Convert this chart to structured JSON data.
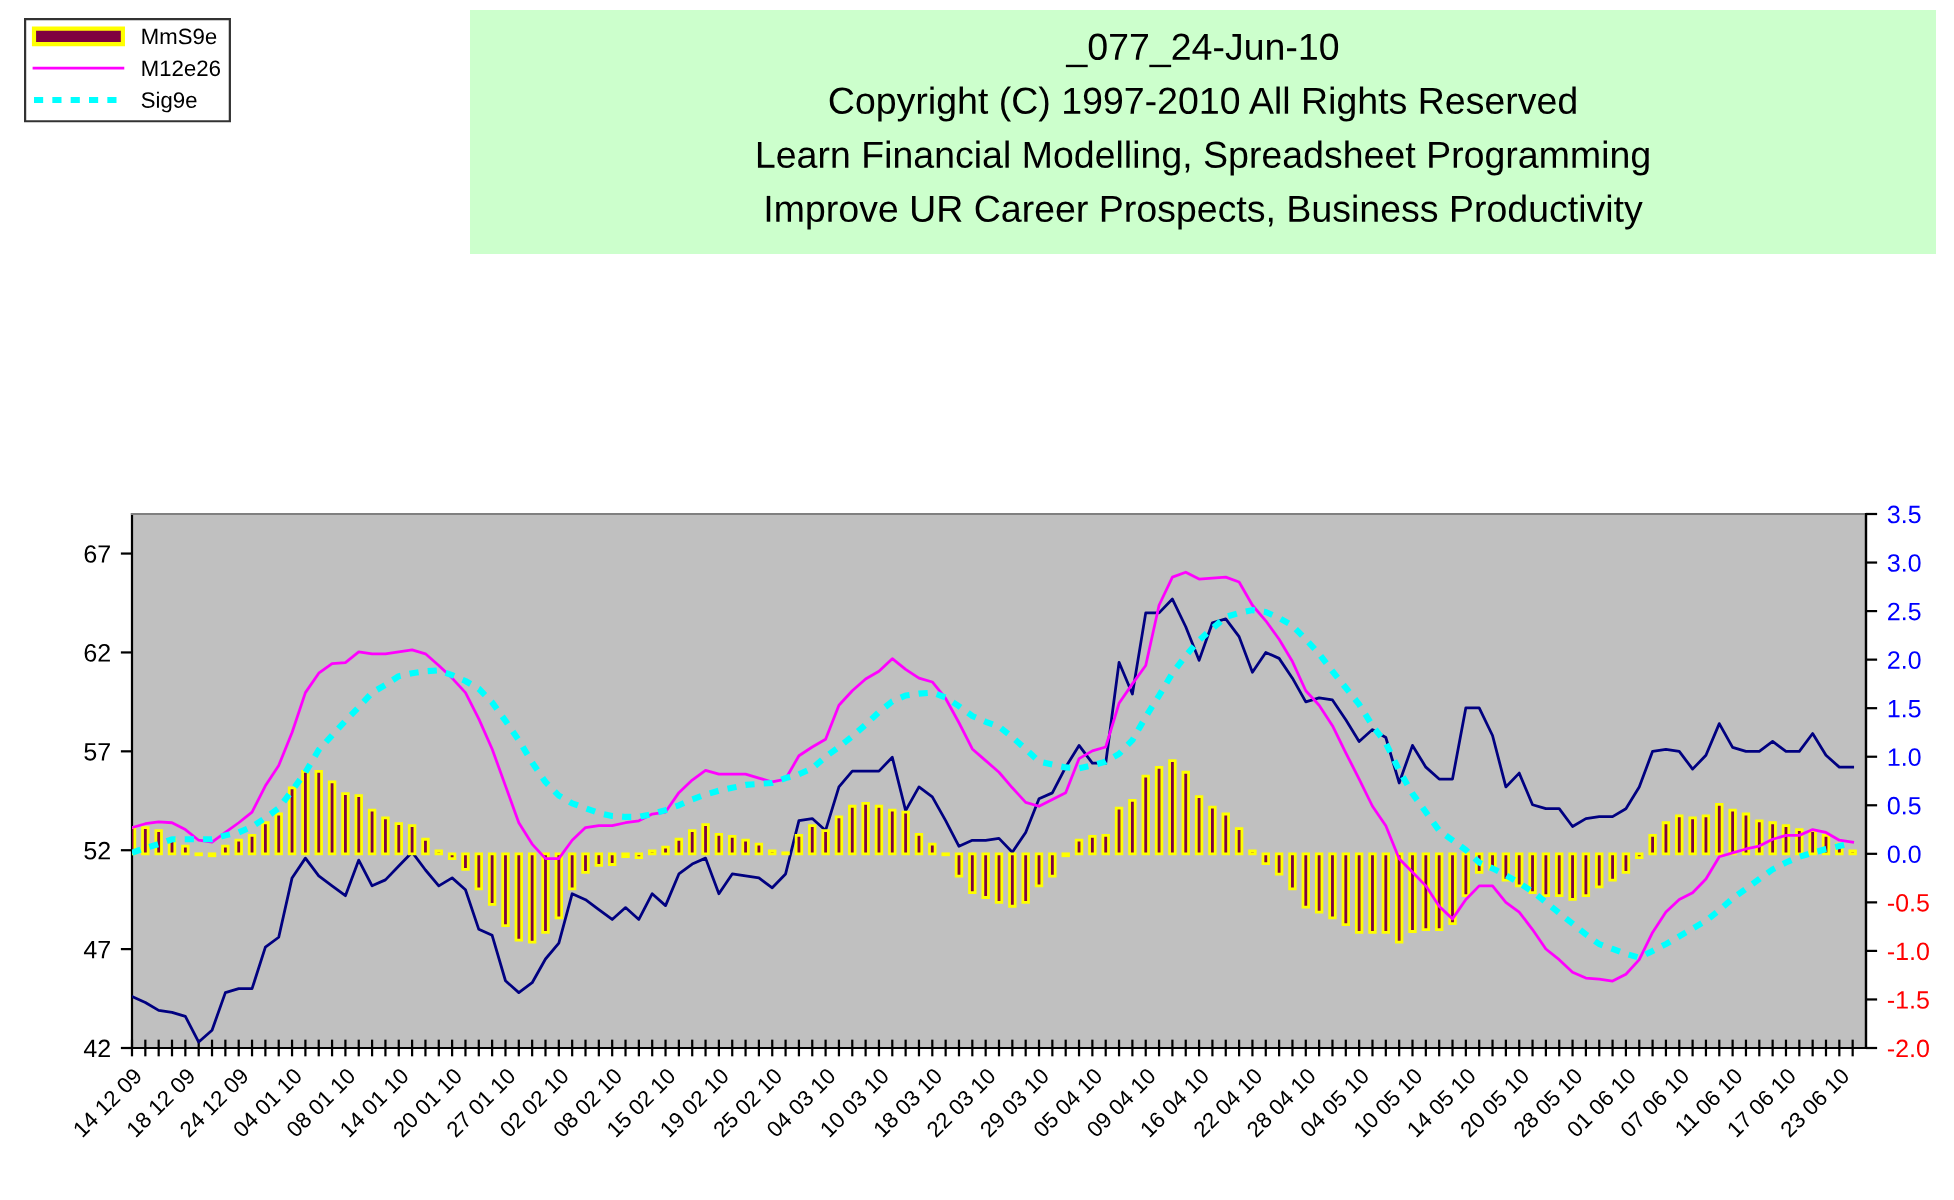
{
  "chart_data": {
    "type": "line",
    "title": "_077_24-Jun-10",
    "annotations": [
      "Copyright (C) 1997-2010 All Rights Reserved",
      "Learn Financial Modelling, Spreadsheet Programming",
      "Improve UR Career Prospects, Business Productivity"
    ],
    "categories": [
      "14 12 09",
      null,
      null,
      null,
      "18 12 09",
      null,
      null,
      null,
      "24 12 09",
      null,
      null,
      null,
      "04 01 10",
      null,
      null,
      null,
      "08 01 10",
      null,
      null,
      null,
      "14 01 10",
      null,
      null,
      null,
      "20 01 10",
      null,
      null,
      null,
      "27 01 10",
      null,
      null,
      null,
      "02 02 10",
      null,
      null,
      null,
      "08 02 10",
      null,
      null,
      null,
      "15 02 10",
      null,
      null,
      null,
      "19 02 10",
      null,
      null,
      null,
      "25 02 10",
      null,
      null,
      null,
      "04 03 10",
      null,
      null,
      null,
      "10 03 10",
      null,
      null,
      null,
      "18 03 10",
      null,
      null,
      null,
      "22 03 10",
      null,
      null,
      null,
      "29 03 10",
      null,
      null,
      null,
      "05 04 10",
      null,
      null,
      null,
      "09 04 10",
      null,
      null,
      null,
      "16 04 10",
      null,
      null,
      null,
      "22 04 10",
      null,
      null,
      null,
      "28 04 10",
      null,
      null,
      null,
      "04 05 10",
      null,
      null,
      null,
      "10 05 10",
      null,
      null,
      null,
      "14 05 10",
      null,
      null,
      null,
      "20 05 10",
      null,
      null,
      null,
      "28 05 10",
      null,
      null,
      null,
      "01 06 10",
      null,
      null,
      null,
      "07 06 10",
      null,
      null,
      null,
      "11 06 10",
      null,
      null,
      null,
      "17 06 10",
      null,
      null,
      null,
      "23 06 10",
      null
    ],
    "series": [
      {
        "name": "MmS9e",
        "type": "bar",
        "axis": "y2",
        "color": "#800040",
        "values": [
          0.27,
          0.27,
          0.24,
          0.15,
          0.08,
          -0.01,
          -0.02,
          0.08,
          0.14,
          0.19,
          0.32,
          0.41,
          0.68,
          0.85,
          0.85,
          0.74,
          0.62,
          0.6,
          0.45,
          0.37,
          0.31,
          0.29,
          0.15,
          0.03,
          -0.05,
          -0.16,
          -0.36,
          -0.52,
          -0.74,
          -0.89,
          -0.91,
          -0.81,
          -0.66,
          -0.36,
          -0.19,
          -0.12,
          -0.11,
          -0.03,
          -0.04,
          0.03,
          0.07,
          0.15,
          0.24,
          0.3,
          0.2,
          0.18,
          0.14,
          0.1,
          0.03,
          0.01,
          0.19,
          0.29,
          0.24,
          0.38,
          0.49,
          0.52,
          0.49,
          0.45,
          0.43,
          0.2,
          0.1,
          -0.01,
          -0.23,
          -0.4,
          -0.45,
          -0.5,
          -0.54,
          -0.5,
          -0.33,
          -0.23,
          -0.02,
          0.14,
          0.18,
          0.19,
          0.47,
          0.55,
          0.8,
          0.89,
          0.96,
          0.84,
          0.59,
          0.48,
          0.41,
          0.26,
          0.03,
          -0.1,
          -0.21,
          -0.36,
          -0.55,
          -0.6,
          -0.66,
          -0.73,
          -0.81,
          -0.81,
          -0.81,
          -0.91,
          -0.8,
          -0.78,
          -0.78,
          -0.72,
          -0.43,
          -0.19,
          -0.16,
          -0.27,
          -0.33,
          -0.4,
          -0.43,
          -0.43,
          -0.47,
          -0.43,
          -0.34,
          -0.27,
          -0.19,
          -0.04,
          0.19,
          0.32,
          0.39,
          0.37,
          0.39,
          0.51,
          0.45,
          0.41,
          0.34,
          0.32,
          0.29,
          0.25,
          0.24,
          0.19,
          0.1,
          0.03
        ]
      },
      {
        "axis": "y",
        "color": "#000080",
        "values": [
          44.6,
          44.3,
          43.9,
          43.8,
          43.6,
          42.3,
          42.9,
          44.8,
          45.0,
          45.0,
          47.1,
          47.6,
          50.6,
          51.6,
          50.7,
          50.2,
          49.7,
          51.5,
          50.2,
          50.5,
          51.2,
          51.9,
          51.0,
          50.2,
          50.6,
          50.0,
          48.0,
          47.7,
          45.4,
          44.8,
          45.3,
          46.5,
          47.3,
          49.8,
          49.5,
          49.0,
          48.5,
          49.1,
          48.5,
          49.8,
          49.2,
          50.8,
          51.3,
          51.6,
          49.8,
          50.8,
          50.7,
          50.6,
          50.1,
          50.8,
          53.5,
          53.6,
          53.0,
          55.2,
          56.0,
          56.0,
          56.0,
          56.7,
          54.0,
          55.2,
          54.7,
          53.5,
          52.2,
          52.5,
          52.5,
          52.6,
          51.9,
          52.9,
          54.6,
          54.9,
          56.2,
          57.3,
          56.4,
          56.4,
          61.5,
          59.9,
          64.0,
          64.0,
          64.7,
          63.3,
          61.6,
          63.5,
          63.7,
          62.8,
          61.0,
          62.0,
          61.7,
          60.7,
          59.5,
          59.7,
          59.6,
          58.6,
          57.5,
          58.1,
          57.7,
          55.4,
          57.3,
          56.2,
          55.6,
          55.6,
          59.2,
          59.2,
          57.8,
          55.2,
          55.9,
          54.3,
          54.1,
          54.1,
          53.2,
          53.6,
          53.7,
          53.7,
          54.1,
          55.2,
          57.0,
          57.1,
          57.0,
          56.1,
          56.8,
          58.4,
          57.2,
          57.0,
          57.0,
          57.5,
          57.0,
          57.0,
          57.9,
          56.8,
          56.2,
          56.2
        ]
      },
      {
        "name": "M12e26",
        "type": "line",
        "axis": "y2",
        "color": "#ff00ff",
        "values": [
          0.27,
          0.31,
          0.33,
          0.32,
          0.25,
          0.14,
          0.12,
          0.22,
          0.32,
          0.43,
          0.7,
          0.91,
          1.25,
          1.66,
          1.86,
          1.96,
          1.97,
          2.08,
          2.06,
          2.06,
          2.08,
          2.1,
          2.06,
          1.94,
          1.81,
          1.66,
          1.39,
          1.08,
          0.7,
          0.32,
          0.1,
          -0.05,
          -0.05,
          0.14,
          0.27,
          0.29,
          0.29,
          0.32,
          0.34,
          0.41,
          0.43,
          0.63,
          0.76,
          0.86,
          0.82,
          0.82,
          0.82,
          0.78,
          0.74,
          0.77,
          1.01,
          1.1,
          1.18,
          1.53,
          1.68,
          1.8,
          1.88,
          2.01,
          1.9,
          1.81,
          1.77,
          1.6,
          1.35,
          1.08,
          0.96,
          0.84,
          0.68,
          0.53,
          0.49,
          0.56,
          0.63,
          0.98,
          1.06,
          1.1,
          1.55,
          1.75,
          1.94,
          2.56,
          2.85,
          2.9,
          2.83,
          2.84,
          2.85,
          2.8,
          2.56,
          2.4,
          2.21,
          1.98,
          1.68,
          1.53,
          1.32,
          1.04,
          0.77,
          0.49,
          0.29,
          -0.05,
          -0.19,
          -0.33,
          -0.54,
          -0.67,
          -0.47,
          -0.33,
          -0.33,
          -0.5,
          -0.6,
          -0.78,
          -0.98,
          -1.09,
          -1.22,
          -1.28,
          -1.29,
          -1.31,
          -1.24,
          -1.09,
          -0.81,
          -0.6,
          -0.47,
          -0.4,
          -0.26,
          -0.03,
          0.01,
          0.05,
          0.08,
          0.15,
          0.19,
          0.19,
          0.25,
          0.22,
          0.14,
          0.12
        ]
      },
      {
        "name": "Sig9e",
        "type": "line",
        "axis": "y2",
        "line_style": "dashed",
        "color": "#00ffff",
        "values": [
          0.01,
          0.06,
          0.1,
          0.15,
          0.15,
          0.15,
          0.15,
          0.19,
          0.22,
          0.28,
          0.37,
          0.47,
          0.65,
          0.84,
          1.07,
          1.22,
          1.37,
          1.51,
          1.66,
          1.74,
          1.83,
          1.86,
          1.88,
          1.89,
          1.84,
          1.78,
          1.7,
          1.56,
          1.37,
          1.17,
          0.94,
          0.74,
          0.6,
          0.52,
          0.47,
          0.42,
          0.39,
          0.38,
          0.38,
          0.41,
          0.45,
          0.5,
          0.56,
          0.61,
          0.65,
          0.68,
          0.71,
          0.72,
          0.73,
          0.78,
          0.82,
          0.88,
          1.0,
          1.1,
          1.21,
          1.33,
          1.46,
          1.57,
          1.63,
          1.65,
          1.66,
          1.61,
          1.52,
          1.42,
          1.36,
          1.31,
          1.2,
          1.08,
          0.95,
          0.92,
          0.89,
          0.88,
          0.91,
          0.95,
          1.03,
          1.17,
          1.41,
          1.63,
          1.86,
          2.04,
          2.2,
          2.32,
          2.44,
          2.48,
          2.51,
          2.49,
          2.43,
          2.35,
          2.21,
          2.06,
          1.88,
          1.71,
          1.54,
          1.32,
          1.14,
          0.86,
          0.62,
          0.43,
          0.24,
          0.14,
          0.04,
          -0.09,
          -0.15,
          -0.22,
          -0.3,
          -0.39,
          -0.5,
          -0.61,
          -0.72,
          -0.83,
          -0.93,
          -0.98,
          -1.03,
          -1.07,
          -1.0,
          -0.93,
          -0.85,
          -0.77,
          -0.69,
          -0.58,
          -0.46,
          -0.36,
          -0.26,
          -0.16,
          -0.09,
          -0.03,
          0.01,
          0.05,
          0.08,
          0.11
        ]
      }
    ],
    "ylim": [
      42,
      69
    ],
    "yticks": [
      42,
      47,
      52,
      57,
      62,
      67
    ],
    "y2lim": [
      -2.0,
      3.5
    ],
    "y2ticks": [
      {
        "value": -2,
        "label": "-2.0"
      },
      {
        "value": -1.5,
        "label": "-1.5"
      },
      {
        "value": -1,
        "label": "-1.0"
      },
      {
        "value": -0.5,
        "label": "-0.5"
      },
      {
        "value": 0,
        "label": "0.0"
      },
      {
        "value": 0.5,
        "label": "0.5"
      },
      {
        "value": 1,
        "label": "1.0"
      },
      {
        "value": 1.5,
        "label": "1.5"
      },
      {
        "value": 2,
        "label": "2.0"
      },
      {
        "value": 2.5,
        "label": "2.5"
      },
      {
        "value": 3,
        "label": "3.0"
      },
      {
        "value": 3.5,
        "label": "3.5"
      }
    ],
    "legend": "top left",
    "marker": "none"
  }
}
